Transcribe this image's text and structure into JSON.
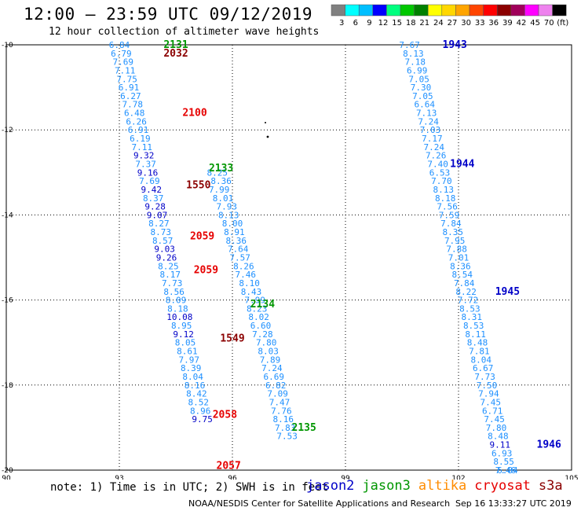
{
  "header": {
    "title": "12:00 – 23:59 UTC 09/12/2019",
    "subtitle": "12 hour collection of altimeter wave heights"
  },
  "colorbar": {
    "ticks": [
      "3",
      "6",
      "9",
      "12",
      "15",
      "18",
      "21",
      "24",
      "27",
      "30",
      "33",
      "36",
      "39",
      "42",
      "45",
      "70",
      "(ft)"
    ],
    "colors": [
      "#808080",
      "#00ffff",
      "#00bfff",
      "#0000ff",
      "#00ff7f",
      "#00c800",
      "#008000",
      "#ffff00",
      "#ffd700",
      "#ffa500",
      "#ff4500",
      "#ff0000",
      "#8b0000",
      "#a0005a",
      "#ff00ff",
      "#ee82ee",
      "#000000"
    ]
  },
  "footer": {
    "note": "note: 1) Time is in UTC; 2) SWH is in feet",
    "satellites": [
      {
        "name": "jason2",
        "color": "#0000c8"
      },
      {
        "name": "jason3",
        "color": "#009600"
      },
      {
        "name": "altika",
        "color": "#ff8c00"
      },
      {
        "name": "cryosat",
        "color": "#e60000"
      },
      {
        "name": "s3a",
        "color": "#8b0000"
      }
    ],
    "credit": "NOAA/NESDIS Center for Satellite Applications and Research",
    "date": "Sep 16 13:33:27 UTC 2019"
  },
  "chart_data": {
    "type": "scatter",
    "title": "12:00 – 23:59 UTC 09/12/2019",
    "subtitle": "12 hour collection of altimeter wave heights",
    "xlim": [
      90,
      105
    ],
    "ylim": [
      -20,
      -10
    ],
    "x_ticks": [
      "90",
      "93",
      "96",
      "99",
      "102",
      "105"
    ],
    "y_ticks": [
      "-10",
      "-12",
      "-14",
      "-16",
      "-18",
      "-20"
    ],
    "grid": true,
    "track_colors": {
      "jason2": "#0000c8",
      "jason3": "#009600",
      "cryosat": "#e60000",
      "s3a": "#8b0000",
      "label": "#1e90ff"
    },
    "series": [
      {
        "name": "jason2",
        "time_label": {
          "text": "1943",
          "x": 101.9,
          "y": -10
        },
        "points": [
          [
            100.7,
            -10.0,
            "7.67"
          ],
          [
            100.8,
            -10.2,
            "8.13"
          ],
          [
            100.85,
            -10.4,
            "7.18"
          ],
          [
            100.9,
            -10.6,
            "6.99"
          ],
          [
            100.95,
            -10.8,
            "7.05"
          ],
          [
            101.0,
            -11.0,
            "7.30"
          ],
          [
            101.05,
            -11.2,
            "7.05"
          ],
          [
            101.1,
            -11.4,
            "6.64"
          ],
          [
            101.15,
            -11.6,
            "7.13"
          ],
          [
            101.2,
            -11.8,
            "7.24"
          ],
          [
            101.25,
            -12.0,
            "7.03"
          ],
          [
            101.3,
            -12.2,
            "7.17"
          ],
          [
            101.35,
            -12.4,
            "7.24"
          ],
          [
            101.4,
            -12.6,
            "7.26"
          ],
          [
            101.45,
            -12.8,
            "7.40"
          ],
          [
            101.5,
            -13.0,
            "6.53"
          ],
          [
            101.55,
            -13.2,
            "7.70"
          ],
          [
            101.6,
            -13.4,
            "8.13"
          ],
          [
            101.65,
            -13.6,
            "8.18"
          ],
          [
            101.7,
            -13.8,
            "7.56"
          ],
          [
            101.75,
            -14.0,
            "7.59"
          ],
          [
            101.8,
            -14.2,
            "7.84"
          ],
          [
            101.85,
            -14.4,
            "8.35"
          ],
          [
            101.9,
            -14.6,
            "7.95"
          ],
          [
            101.95,
            -14.8,
            "7.88"
          ],
          [
            102.0,
            -15.0,
            "7.01"
          ],
          [
            102.05,
            -15.2,
            "8.36"
          ],
          [
            102.1,
            -15.4,
            "8.54"
          ],
          [
            102.15,
            -15.6,
            "7.84"
          ],
          [
            102.2,
            -15.8,
            "8.22"
          ],
          [
            102.25,
            -16.0,
            "7.72"
          ],
          [
            102.3,
            -16.2,
            "8.53"
          ],
          [
            102.35,
            -16.4,
            "8.31"
          ],
          [
            102.4,
            -16.6,
            "8.53"
          ],
          [
            102.45,
            -16.8,
            "8.11"
          ],
          [
            102.5,
            -17.0,
            "8.48"
          ],
          [
            102.55,
            -17.2,
            "7.81"
          ],
          [
            102.6,
            -17.4,
            "8.04"
          ],
          [
            102.65,
            -17.6,
            "6.67"
          ],
          [
            102.7,
            -17.8,
            "7.73"
          ],
          [
            102.75,
            -18.0,
            "7.50"
          ],
          [
            102.8,
            -18.2,
            "7.94"
          ],
          [
            102.85,
            -18.4,
            "7.45"
          ],
          [
            102.9,
            -18.6,
            "6.71"
          ],
          [
            102.95,
            -18.8,
            "7.45"
          ],
          [
            103.0,
            -19.0,
            "7.80"
          ],
          [
            103.05,
            -19.2,
            "8.48"
          ],
          [
            103.1,
            -19.4,
            "9.11"
          ],
          [
            103.15,
            -19.6,
            "6.93"
          ],
          [
            103.2,
            -19.8,
            "8.55"
          ],
          [
            103.25,
            -20.0,
            "7.46"
          ],
          [
            103.3,
            -20.0,
            "6.84"
          ]
        ],
        "extra_labels": [
          {
            "text": "1944",
            "x": 102.1,
            "y": -12.8
          },
          {
            "text": "1945",
            "x": 103.3,
            "y": -15.8
          },
          {
            "text": "1946",
            "x": 104.4,
            "y": -19.4
          }
        ]
      },
      {
        "name": "jason3",
        "time_label": {
          "text": "2131",
          "x": 94.5,
          "y": -10.0
        },
        "points": [
          [
            95.6,
            -13.0,
            "8.25"
          ],
          [
            95.7,
            -13.2,
            "8.36"
          ],
          [
            95.65,
            -13.4,
            "7.99"
          ],
          [
            95.75,
            -13.6,
            "8.01"
          ],
          [
            95.85,
            -13.8,
            "7.93"
          ],
          [
            95.9,
            -14.0,
            "8.13"
          ],
          [
            96.0,
            -14.2,
            "8.00"
          ],
          [
            96.05,
            -14.4,
            "8.91"
          ],
          [
            96.1,
            -14.6,
            "8.36"
          ],
          [
            96.15,
            -14.8,
            "7.64"
          ],
          [
            96.2,
            -15.0,
            "7.57"
          ],
          [
            96.3,
            -15.2,
            "8.26"
          ],
          [
            96.35,
            -15.4,
            "7.46"
          ],
          [
            96.45,
            -15.6,
            "8.10"
          ],
          [
            96.5,
            -15.8,
            "8.43"
          ],
          [
            96.6,
            -16.0,
            "7.99"
          ],
          [
            96.65,
            -16.2,
            "8.23"
          ],
          [
            96.7,
            -16.4,
            "8.02"
          ],
          [
            96.75,
            -16.6,
            "6.60"
          ],
          [
            96.8,
            -16.8,
            "7.28"
          ],
          [
            96.9,
            -17.0,
            "7.80"
          ],
          [
            96.95,
            -17.2,
            "8.03"
          ],
          [
            97.0,
            -17.4,
            "7.89"
          ],
          [
            97.05,
            -17.6,
            "7.24"
          ],
          [
            97.1,
            -17.8,
            "6.69"
          ],
          [
            97.15,
            -18.0,
            "6.82"
          ],
          [
            97.2,
            -18.2,
            "7.09"
          ],
          [
            97.25,
            -18.4,
            "7.47"
          ],
          [
            97.3,
            -18.6,
            "7.76"
          ],
          [
            97.35,
            -18.8,
            "8.16"
          ],
          [
            97.4,
            -19.0,
            "7.83"
          ],
          [
            97.45,
            -19.2,
            "7.53"
          ]
        ],
        "extra_labels": [
          {
            "text": "2133",
            "x": 95.7,
            "y": -12.9
          },
          {
            "text": "2134",
            "x": 96.8,
            "y": -16.1
          },
          {
            "text": "2135",
            "x": 97.9,
            "y": -19.0
          }
        ]
      },
      {
        "name": "cryosat",
        "time_label": {
          "text": "2100",
          "x": 95.0,
          "y": -11.6
        },
        "points": [],
        "extra_labels": [
          {
            "text": "2059",
            "x": 95.2,
            "y": -14.5
          },
          {
            "text": "2059",
            "x": 95.3,
            "y": -15.3
          },
          {
            "text": "2058",
            "x": 95.8,
            "y": -18.7
          },
          {
            "text": "2057",
            "x": 95.9,
            "y": -19.9
          }
        ]
      },
      {
        "name": "s3a",
        "time_label": {
          "text": "1550",
          "x": 95.1,
          "y": -13.3
        },
        "points": [],
        "extra_labels": [
          {
            "text": "1549",
            "x": 96.0,
            "y": -16.9
          },
          {
            "text": "2032",
            "x": 94.5,
            "y": -10.2
          }
        ]
      },
      {
        "name": "altika",
        "points": [
          [
            93.0,
            -10.0,
            "6.84"
          ],
          [
            93.05,
            -10.2,
            "6.79"
          ],
          [
            93.1,
            -10.4,
            "7.69"
          ],
          [
            93.15,
            -10.6,
            "7.11"
          ],
          [
            93.2,
            -10.8,
            "7.75"
          ],
          [
            93.25,
            -11.0,
            "6.91"
          ],
          [
            93.3,
            -11.2,
            "6.27"
          ],
          [
            93.35,
            -11.4,
            "7.78"
          ],
          [
            93.4,
            -11.6,
            "6.48"
          ],
          [
            93.45,
            -11.8,
            "6.26"
          ],
          [
            93.5,
            -12.0,
            "6.91"
          ],
          [
            93.55,
            -12.2,
            "6.19"
          ],
          [
            93.6,
            -12.4,
            "7.11"
          ],
          [
            93.65,
            -12.6,
            "9.32"
          ],
          [
            93.7,
            -12.8,
            "7.37"
          ],
          [
            93.75,
            -13.0,
            "9.16"
          ],
          [
            93.8,
            -13.2,
            "7.69"
          ],
          [
            93.85,
            -13.4,
            "9.42"
          ],
          [
            93.9,
            -13.6,
            "8.37"
          ],
          [
            93.95,
            -13.8,
            "9.28"
          ],
          [
            94.0,
            -14.0,
            "9.07"
          ],
          [
            94.05,
            -14.2,
            "8.27"
          ],
          [
            94.1,
            -14.4,
            "8.73"
          ],
          [
            94.15,
            -14.6,
            "8.57"
          ],
          [
            94.2,
            -14.8,
            "9.03"
          ],
          [
            94.25,
            -15.0,
            "9.26"
          ],
          [
            94.3,
            -15.2,
            "8.25"
          ],
          [
            94.35,
            -15.4,
            "8.17"
          ],
          [
            94.4,
            -15.6,
            "7.73"
          ],
          [
            94.45,
            -15.8,
            "8.56"
          ],
          [
            94.5,
            -16.0,
            "8.09"
          ],
          [
            94.55,
            -16.2,
            "8.18"
          ],
          [
            94.6,
            -16.4,
            "10.08"
          ],
          [
            94.65,
            -16.6,
            "8.95"
          ],
          [
            94.7,
            -16.8,
            "9.12"
          ],
          [
            94.75,
            -17.0,
            "8.05"
          ],
          [
            94.8,
            -17.2,
            "8.61"
          ],
          [
            94.85,
            -17.4,
            "7.97"
          ],
          [
            94.9,
            -17.6,
            "8.39"
          ],
          [
            94.95,
            -17.8,
            "8.04"
          ],
          [
            95.0,
            -18.0,
            "8.16"
          ],
          [
            95.05,
            -18.2,
            "8.42"
          ],
          [
            95.1,
            -18.4,
            "8.52"
          ],
          [
            95.15,
            -18.6,
            "8.96"
          ],
          [
            95.2,
            -18.8,
            "9.75"
          ]
        ]
      }
    ]
  }
}
